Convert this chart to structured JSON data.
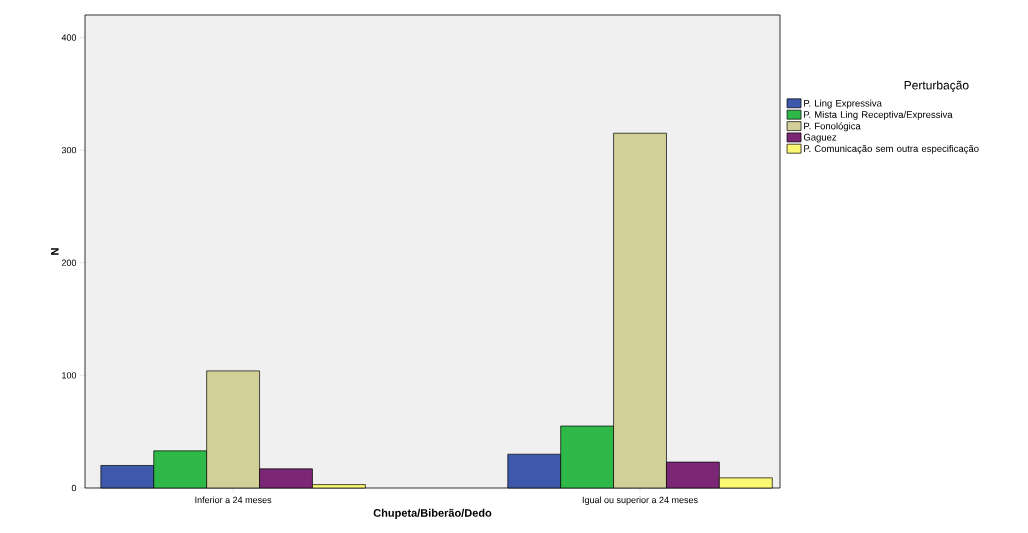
{
  "chart_data": {
    "type": "bar",
    "xlabel": "Chupeta/Biberão/Dedo",
    "ylabel": "N",
    "legend_title": "Perturbação",
    "categories": [
      "Inferior a 24 meses",
      "Igual ou superior a 24 meses"
    ],
    "series": [
      {
        "name": "P. Ling Expressiva",
        "color": "#3e58ac",
        "values": [
          20,
          30
        ]
      },
      {
        "name": "P. Mista Ling Receptiva/Expressiva",
        "color": "#2eb848",
        "values": [
          33,
          55
        ]
      },
      {
        "name": "P. Fonológica",
        "color": "#d2d098",
        "values": [
          104,
          315
        ]
      },
      {
        "name": "Gaguez",
        "color": "#7b2776",
        "values": [
          17,
          23
        ]
      },
      {
        "name": "P. Comunicação sem outra especificação",
        "color": "#fbf873",
        "values": [
          3,
          9
        ]
      }
    ],
    "ylim": [
      0,
      420
    ],
    "yticks": [
      0,
      100,
      200,
      300,
      400
    ],
    "grid": false,
    "legend": "right"
  }
}
